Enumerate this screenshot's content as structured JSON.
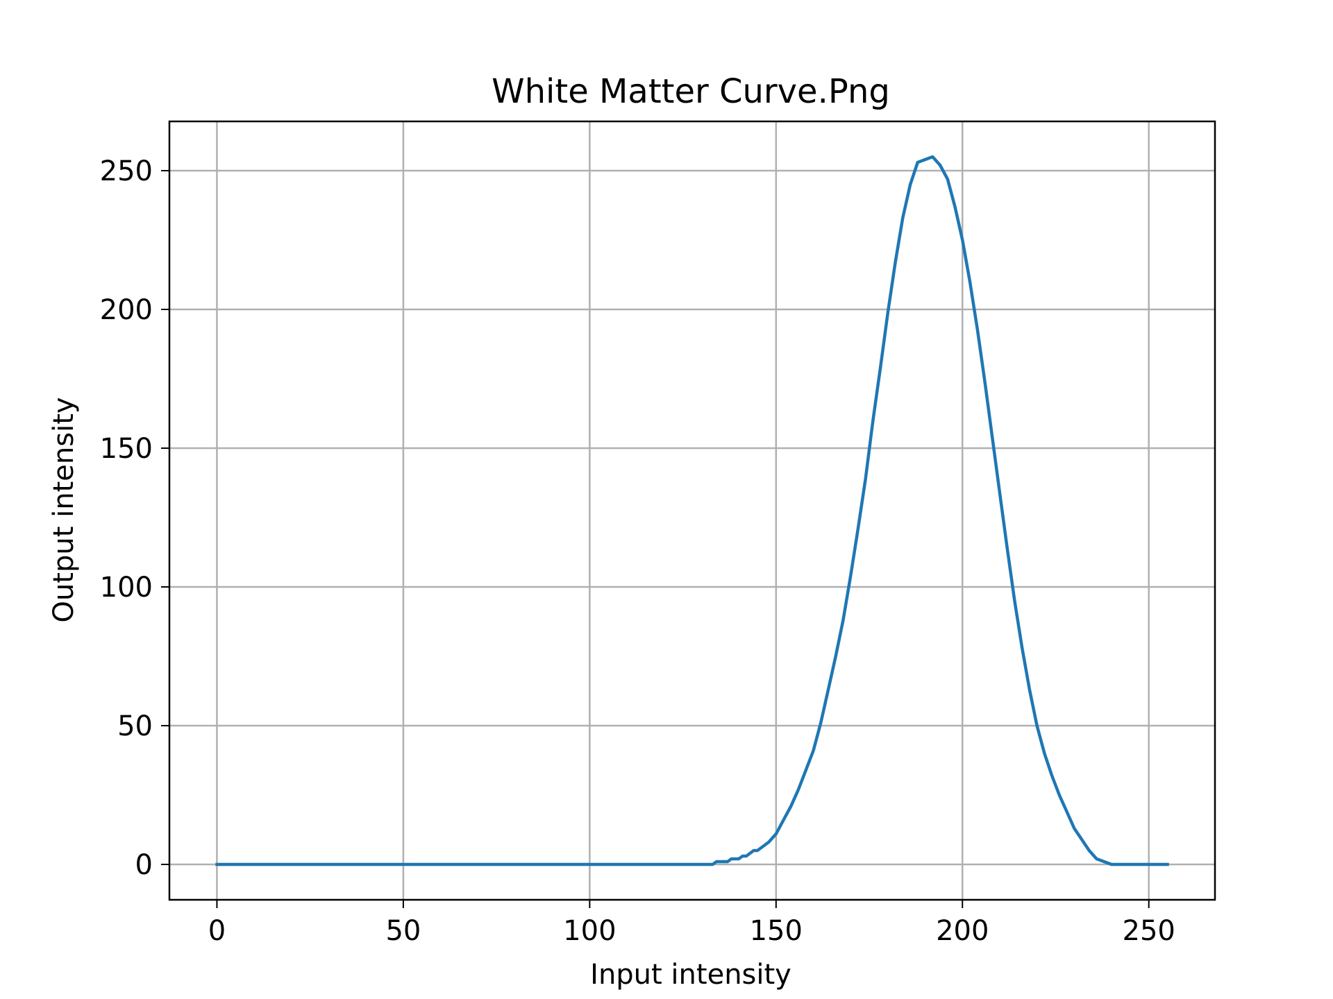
{
  "chart_data": {
    "type": "line",
    "title": "White Matter Curve.Png",
    "xlabel": "Input intensity",
    "ylabel": "Output intensity",
    "xlim": [
      -12.75,
      267.75
    ],
    "ylim": [
      -12.75,
      267.75
    ],
    "xticks": [
      0,
      50,
      100,
      150,
      200,
      250
    ],
    "yticks": [
      0,
      50,
      100,
      150,
      200,
      250
    ],
    "grid": true,
    "colors": {
      "series": "#1f77b4"
    },
    "series": [
      {
        "x": [
          0,
          133,
          134,
          136,
          137,
          138,
          140,
          141,
          142,
          144,
          145,
          146,
          148,
          150,
          152,
          154,
          156,
          158,
          160,
          162,
          163,
          164,
          166,
          168,
          170,
          172,
          174,
          176,
          178,
          180,
          182,
          184,
          186,
          188,
          190,
          192,
          194,
          196,
          198,
          200,
          202,
          204,
          206,
          208,
          210,
          212,
          214,
          216,
          218,
          220,
          222,
          224,
          226,
          228,
          230,
          232,
          234,
          236,
          238,
          240,
          242,
          244,
          246,
          248,
          250,
          252,
          255
        ],
        "y": [
          0,
          0,
          1,
          1,
          1,
          2,
          2,
          3,
          3,
          5,
          5,
          6,
          8,
          11,
          16,
          21,
          27,
          34,
          41,
          51,
          57,
          63,
          75,
          88,
          104,
          121,
          139,
          160,
          179,
          199,
          217,
          233,
          245,
          253,
          254,
          255,
          252,
          247,
          237,
          225,
          210,
          193,
          174,
          154,
          134,
          114,
          95,
          78,
          63,
          50,
          40,
          32,
          25,
          19,
          13,
          9,
          5,
          2,
          1,
          0,
          0,
          0,
          0,
          0,
          0,
          0,
          0
        ]
      }
    ]
  }
}
